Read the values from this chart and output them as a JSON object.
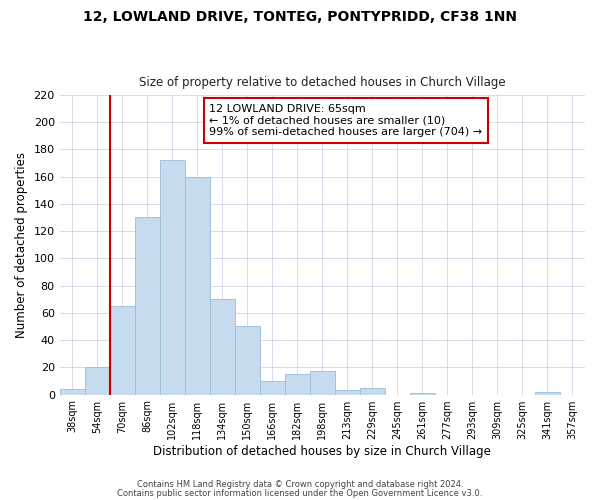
{
  "title": "12, LOWLAND DRIVE, TONTEG, PONTYPRIDD, CF38 1NN",
  "subtitle": "Size of property relative to detached houses in Church Village",
  "xlabel": "Distribution of detached houses by size in Church Village",
  "ylabel": "Number of detached properties",
  "bar_color": "#c6dcee",
  "bar_edge_color": "#9abdd6",
  "bin_labels": [
    "38sqm",
    "54sqm",
    "70sqm",
    "86sqm",
    "102sqm",
    "118sqm",
    "134sqm",
    "150sqm",
    "166sqm",
    "182sqm",
    "198sqm",
    "213sqm",
    "229sqm",
    "245sqm",
    "261sqm",
    "277sqm",
    "293sqm",
    "309sqm",
    "325sqm",
    "341sqm",
    "357sqm"
  ],
  "bar_heights": [
    4,
    20,
    65,
    130,
    172,
    160,
    70,
    50,
    10,
    15,
    17,
    3,
    5,
    0,
    1,
    0,
    0,
    0,
    0,
    2,
    0
  ],
  "ylim": [
    0,
    220
  ],
  "yticks": [
    0,
    20,
    40,
    60,
    80,
    100,
    120,
    140,
    160,
    180,
    200,
    220
  ],
  "vline_bin_index": 2,
  "vline_color": "#cc0000",
  "annotation_title": "12 LOWLAND DRIVE: 65sqm",
  "annotation_line1": "← 1% of detached houses are smaller (10)",
  "annotation_line2": "99% of semi-detached houses are larger (704) →",
  "annotation_box_color": "#ffffff",
  "annotation_box_edge": "#cc0000",
  "footer1": "Contains HM Land Registry data © Crown copyright and database right 2024.",
  "footer2": "Contains public sector information licensed under the Open Government Licence v3.0.",
  "background_color": "#ffffff",
  "grid_color": "#d4d4e8"
}
